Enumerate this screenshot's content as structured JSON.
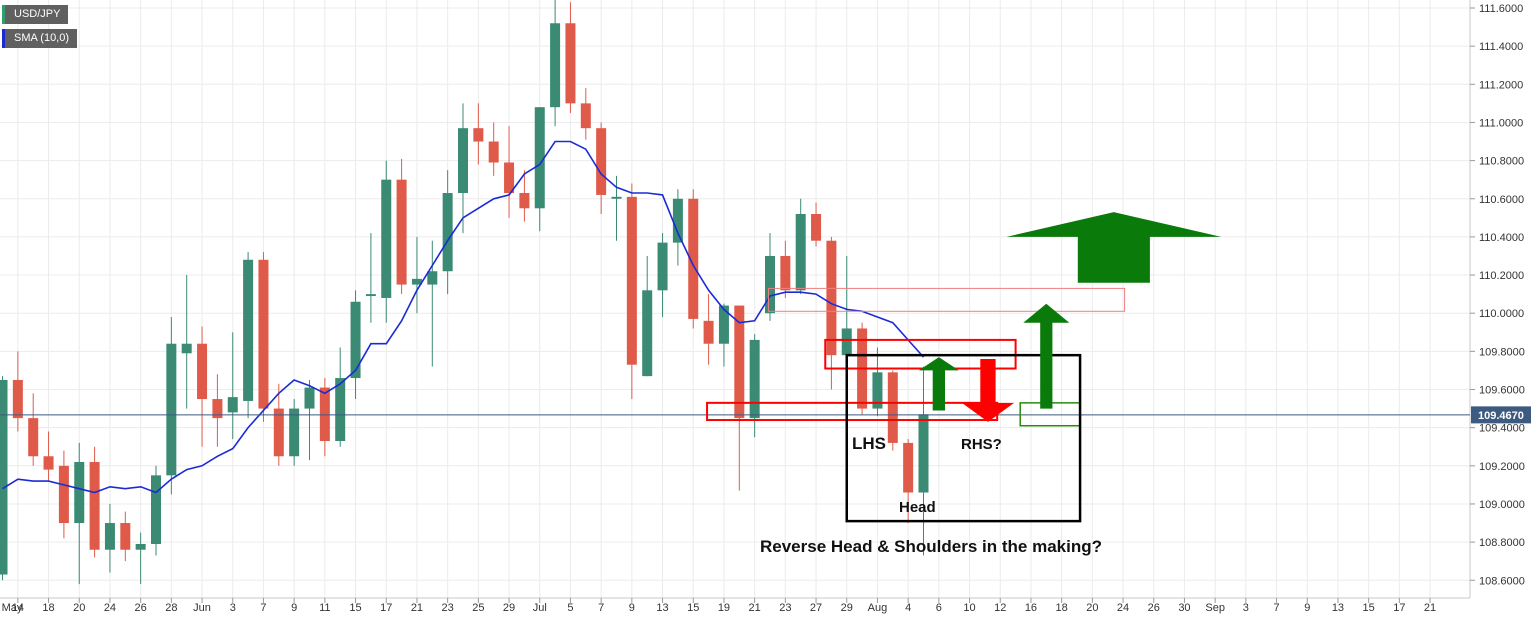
{
  "legend": {
    "instrument": "USD/JPY",
    "indicator": "SMA (10,0)"
  },
  "colors": {
    "up": "#3a8a74",
    "down": "#e05a4a",
    "sma": "#1a2bd6",
    "current_price_line": "#3d5a80",
    "price_tag_bg": "#3d5a80",
    "zone_red": "#ff0000",
    "zone_green": "#2a8a10",
    "arrow_green": "#0a7a0a",
    "arrow_red": "#ff0000"
  },
  "annotations": {
    "lhs": "LHS",
    "rhs": "RHS?",
    "head": "Head",
    "caption": "Reverse Head & Shoulders in the making?"
  },
  "current_price": {
    "label": "109.4670",
    "value": 109.467
  },
  "chart_data": {
    "type": "candlestick",
    "ylim": [
      108.52,
      111.62
    ],
    "y_ticks": [
      {
        "value": 108.6,
        "label": "108.6000"
      },
      {
        "value": 108.8,
        "label": "108.8000"
      },
      {
        "value": 109.0,
        "label": "109.0000"
      },
      {
        "value": 109.2,
        "label": "109.2000"
      },
      {
        "value": 109.4,
        "label": "109.4000"
      },
      {
        "value": 109.6,
        "label": "109.6000"
      },
      {
        "value": 109.8,
        "label": "109.8000"
      },
      {
        "value": 110.0,
        "label": "110.0000"
      },
      {
        "value": 110.2,
        "label": "110.2000"
      },
      {
        "value": 110.4,
        "label": "110.4000"
      },
      {
        "value": 110.6,
        "label": "110.6000"
      },
      {
        "value": 110.8,
        "label": "110.8000"
      },
      {
        "value": 111.0,
        "label": "111.0000"
      },
      {
        "value": 111.2,
        "label": "111.2000"
      },
      {
        "value": 111.4,
        "label": "111.4000"
      },
      {
        "value": 111.6,
        "label": "111.6000"
      }
    ],
    "x_ticks": [
      {
        "i": -0.5,
        "label": "May"
      },
      {
        "i": 1,
        "label": "14"
      },
      {
        "i": 3,
        "label": "18"
      },
      {
        "i": 5,
        "label": "20"
      },
      {
        "i": 7,
        "label": "24"
      },
      {
        "i": 9,
        "label": "26"
      },
      {
        "i": 11,
        "label": "28"
      },
      {
        "i": 13,
        "label": "Jun"
      },
      {
        "i": 15,
        "label": "3"
      },
      {
        "i": 17,
        "label": "7"
      },
      {
        "i": 19,
        "label": "9"
      },
      {
        "i": 21,
        "label": "11"
      },
      {
        "i": 23,
        "label": "15"
      },
      {
        "i": 25,
        "label": "17"
      },
      {
        "i": 27,
        "label": "21"
      },
      {
        "i": 29,
        "label": "23"
      },
      {
        "i": 31,
        "label": "25"
      },
      {
        "i": 33,
        "label": "29"
      },
      {
        "i": 35,
        "label": "Jul"
      },
      {
        "i": 37,
        "label": "5"
      },
      {
        "i": 39,
        "label": "7"
      },
      {
        "i": 41,
        "label": "9"
      },
      {
        "i": 43,
        "label": "13"
      },
      {
        "i": 45,
        "label": "15"
      },
      {
        "i": 47,
        "label": "19"
      },
      {
        "i": 49,
        "label": "21"
      },
      {
        "i": 51,
        "label": "23"
      },
      {
        "i": 53,
        "label": "27"
      },
      {
        "i": 55,
        "label": "29"
      },
      {
        "i": 57,
        "label": "Aug"
      },
      {
        "i": 59,
        "label": "4"
      },
      {
        "i": 61,
        "label": "6"
      },
      {
        "i": 63,
        "label": "10"
      },
      {
        "i": 65,
        "label": "12"
      },
      {
        "i": 67,
        "label": "16"
      },
      {
        "i": 69,
        "label": "18"
      },
      {
        "i": 71,
        "label": "20"
      },
      {
        "i": 73,
        "label": "24"
      },
      {
        "i": 75,
        "label": "26"
      },
      {
        "i": 77,
        "label": "30"
      },
      {
        "i": 79,
        "label": "Sep"
      },
      {
        "i": 81,
        "label": "3"
      },
      {
        "i": 83,
        "label": "7"
      },
      {
        "i": 85,
        "label": "9"
      },
      {
        "i": 87,
        "label": "13"
      },
      {
        "i": 89,
        "label": "15"
      },
      {
        "i": 91,
        "label": "17"
      },
      {
        "i": 93,
        "label": "21"
      }
    ],
    "candles": [
      {
        "i": 0,
        "o": 108.63,
        "h": 109.67,
        "l": 108.6,
        "c": 109.65
      },
      {
        "i": 1,
        "o": 109.65,
        "h": 109.8,
        "l": 109.38,
        "c": 109.45
      },
      {
        "i": 2,
        "o": 109.45,
        "h": 109.58,
        "l": 109.2,
        "c": 109.25
      },
      {
        "i": 3,
        "o": 109.25,
        "h": 109.38,
        "l": 109.12,
        "c": 109.18
      },
      {
        "i": 4,
        "o": 109.2,
        "h": 109.28,
        "l": 108.82,
        "c": 108.9
      },
      {
        "i": 5,
        "o": 108.9,
        "h": 109.32,
        "l": 108.58,
        "c": 109.22
      },
      {
        "i": 6,
        "o": 109.22,
        "h": 109.3,
        "l": 108.72,
        "c": 108.76
      },
      {
        "i": 7,
        "o": 108.76,
        "h": 109.0,
        "l": 108.64,
        "c": 108.9
      },
      {
        "i": 8,
        "o": 108.9,
        "h": 108.96,
        "l": 108.7,
        "c": 108.76
      },
      {
        "i": 9,
        "o": 108.76,
        "h": 108.85,
        "l": 108.58,
        "c": 108.79
      },
      {
        "i": 10,
        "o": 108.79,
        "h": 109.2,
        "l": 108.73,
        "c": 109.15
      },
      {
        "i": 11,
        "o": 109.15,
        "h": 109.98,
        "l": 109.05,
        "c": 109.84
      },
      {
        "i": 12,
        "o": 109.79,
        "h": 110.2,
        "l": 109.5,
        "c": 109.84
      },
      {
        "i": 13,
        "o": 109.84,
        "h": 109.93,
        "l": 109.3,
        "c": 109.55
      },
      {
        "i": 14,
        "o": 109.55,
        "h": 109.68,
        "l": 109.3,
        "c": 109.45
      },
      {
        "i": 15,
        "o": 109.48,
        "h": 109.9,
        "l": 109.34,
        "c": 109.56
      },
      {
        "i": 16,
        "o": 109.54,
        "h": 110.32,
        "l": 109.45,
        "c": 110.28
      },
      {
        "i": 17,
        "o": 110.28,
        "h": 110.32,
        "l": 109.43,
        "c": 109.5
      },
      {
        "i": 18,
        "o": 109.5,
        "h": 109.63,
        "l": 109.2,
        "c": 109.25
      },
      {
        "i": 19,
        "o": 109.25,
        "h": 109.55,
        "l": 109.2,
        "c": 109.5
      },
      {
        "i": 20,
        "o": 109.5,
        "h": 109.65,
        "l": 109.23,
        "c": 109.61
      },
      {
        "i": 21,
        "o": 109.61,
        "h": 109.66,
        "l": 109.25,
        "c": 109.33
      },
      {
        "i": 22,
        "o": 109.33,
        "h": 109.82,
        "l": 109.3,
        "c": 109.66
      },
      {
        "i": 23,
        "o": 109.66,
        "h": 110.12,
        "l": 109.55,
        "c": 110.06
      },
      {
        "i": 24,
        "o": 110.09,
        "h": 110.42,
        "l": 109.95,
        "c": 110.1
      },
      {
        "i": 25,
        "o": 110.08,
        "h": 110.8,
        "l": 109.95,
        "c": 110.7
      },
      {
        "i": 26,
        "o": 110.7,
        "h": 110.81,
        "l": 110.1,
        "c": 110.15
      },
      {
        "i": 27,
        "o": 110.15,
        "h": 110.4,
        "l": 110.0,
        "c": 110.18
      },
      {
        "i": 28,
        "o": 110.15,
        "h": 110.38,
        "l": 109.72,
        "c": 110.22
      },
      {
        "i": 29,
        "o": 110.22,
        "h": 110.75,
        "l": 110.1,
        "c": 110.63
      },
      {
        "i": 30,
        "o": 110.63,
        "h": 111.1,
        "l": 110.42,
        "c": 110.97
      },
      {
        "i": 31,
        "o": 110.97,
        "h": 111.1,
        "l": 110.78,
        "c": 110.9
      },
      {
        "i": 32,
        "o": 110.9,
        "h": 111.0,
        "l": 110.72,
        "c": 110.79
      },
      {
        "i": 33,
        "o": 110.79,
        "h": 110.98,
        "l": 110.5,
        "c": 110.63
      },
      {
        "i": 34,
        "o": 110.63,
        "h": 110.75,
        "l": 110.48,
        "c": 110.55
      },
      {
        "i": 35,
        "o": 110.55,
        "h": 111.08,
        "l": 110.43,
        "c": 111.08
      },
      {
        "i": 36,
        "o": 111.08,
        "h": 111.65,
        "l": 110.98,
        "c": 111.52
      },
      {
        "i": 37,
        "o": 111.52,
        "h": 111.63,
        "l": 111.05,
        "c": 111.1
      },
      {
        "i": 38,
        "o": 111.1,
        "h": 111.18,
        "l": 110.91,
        "c": 110.97
      },
      {
        "i": 39,
        "o": 110.97,
        "h": 111.0,
        "l": 110.52,
        "c": 110.62
      },
      {
        "i": 40,
        "o": 110.6,
        "h": 110.72,
        "l": 110.38,
        "c": 110.61
      },
      {
        "i": 41,
        "o": 110.61,
        "h": 110.68,
        "l": 109.55,
        "c": 109.73
      },
      {
        "i": 42,
        "o": 109.67,
        "h": 110.3,
        "l": 109.67,
        "c": 110.12
      },
      {
        "i": 43,
        "o": 110.12,
        "h": 110.42,
        "l": 109.98,
        "c": 110.37
      },
      {
        "i": 44,
        "o": 110.37,
        "h": 110.65,
        "l": 110.25,
        "c": 110.6
      },
      {
        "i": 45,
        "o": 110.6,
        "h": 110.65,
        "l": 109.92,
        "c": 109.97
      },
      {
        "i": 46,
        "o": 109.96,
        "h": 110.1,
        "l": 109.73,
        "c": 109.84
      },
      {
        "i": 47,
        "o": 109.84,
        "h": 110.05,
        "l": 109.72,
        "c": 110.04
      },
      {
        "i": 48,
        "o": 110.04,
        "h": 110.04,
        "l": 109.07,
        "c": 109.45
      },
      {
        "i": 49,
        "o": 109.45,
        "h": 109.89,
        "l": 109.35,
        "c": 109.86
      },
      {
        "i": 50,
        "o": 110.0,
        "h": 110.42,
        "l": 109.96,
        "c": 110.3
      },
      {
        "i": 51,
        "o": 110.3,
        "h": 110.38,
        "l": 110.08,
        "c": 110.12
      },
      {
        "i": 52,
        "o": 110.12,
        "h": 110.6,
        "l": 110.1,
        "c": 110.52
      },
      {
        "i": 53,
        "o": 110.52,
        "h": 110.58,
        "l": 110.35,
        "c": 110.38
      },
      {
        "i": 54,
        "o": 110.38,
        "h": 110.4,
        "l": 109.6,
        "c": 109.78
      },
      {
        "i": 55,
        "o": 109.78,
        "h": 110.3,
        "l": 109.72,
        "c": 109.92
      },
      {
        "i": 56,
        "o": 109.92,
        "h": 109.95,
        "l": 109.47,
        "c": 109.5
      },
      {
        "i": 57,
        "o": 109.5,
        "h": 109.82,
        "l": 109.46,
        "c": 109.69
      },
      {
        "i": 58,
        "o": 109.69,
        "h": 109.7,
        "l": 109.28,
        "c": 109.32
      },
      {
        "i": 59,
        "o": 109.32,
        "h": 109.34,
        "l": 108.9,
        "c": 109.06
      },
      {
        "i": 60,
        "o": 109.06,
        "h": 109.72,
        "l": 108.73,
        "c": 109.47
      }
    ],
    "sma": [
      {
        "i": 0,
        "v": 109.08
      },
      {
        "i": 1,
        "v": 109.13
      },
      {
        "i": 2,
        "v": 109.12
      },
      {
        "i": 3,
        "v": 109.12
      },
      {
        "i": 4,
        "v": 109.1
      },
      {
        "i": 5,
        "v": 109.08
      },
      {
        "i": 6,
        "v": 109.06
      },
      {
        "i": 7,
        "v": 109.09
      },
      {
        "i": 8,
        "v": 109.08
      },
      {
        "i": 9,
        "v": 109.09
      },
      {
        "i": 10,
        "v": 109.06
      },
      {
        "i": 11,
        "v": 109.13
      },
      {
        "i": 12,
        "v": 109.18
      },
      {
        "i": 13,
        "v": 109.2
      },
      {
        "i": 14,
        "v": 109.25
      },
      {
        "i": 15,
        "v": 109.29
      },
      {
        "i": 16,
        "v": 109.4
      },
      {
        "i": 17,
        "v": 109.49
      },
      {
        "i": 18,
        "v": 109.58
      },
      {
        "i": 19,
        "v": 109.65
      },
      {
        "i": 20,
        "v": 109.62
      },
      {
        "i": 21,
        "v": 109.58
      },
      {
        "i": 22,
        "v": 109.63
      },
      {
        "i": 23,
        "v": 109.7
      },
      {
        "i": 24,
        "v": 109.84
      },
      {
        "i": 25,
        "v": 109.84
      },
      {
        "i": 26,
        "v": 109.96
      },
      {
        "i": 27,
        "v": 110.12
      },
      {
        "i": 28,
        "v": 110.25
      },
      {
        "i": 29,
        "v": 110.38
      },
      {
        "i": 30,
        "v": 110.5
      },
      {
        "i": 31,
        "v": 110.55
      },
      {
        "i": 32,
        "v": 110.6
      },
      {
        "i": 33,
        "v": 110.62
      },
      {
        "i": 34,
        "v": 110.73
      },
      {
        "i": 35,
        "v": 110.78
      },
      {
        "i": 36,
        "v": 110.9
      },
      {
        "i": 37,
        "v": 110.9
      },
      {
        "i": 38,
        "v": 110.86
      },
      {
        "i": 39,
        "v": 110.73
      },
      {
        "i": 40,
        "v": 110.66
      },
      {
        "i": 41,
        "v": 110.63
      },
      {
        "i": 42,
        "v": 110.63
      },
      {
        "i": 43,
        "v": 110.62
      },
      {
        "i": 44,
        "v": 110.42
      },
      {
        "i": 45,
        "v": 110.25
      },
      {
        "i": 46,
        "v": 110.12
      },
      {
        "i": 47,
        "v": 110.02
      },
      {
        "i": 48,
        "v": 109.95
      },
      {
        "i": 49,
        "v": 109.96
      },
      {
        "i": 50,
        "v": 110.09
      },
      {
        "i": 51,
        "v": 110.11
      },
      {
        "i": 52,
        "v": 110.11
      },
      {
        "i": 53,
        "v": 110.1
      },
      {
        "i": 54,
        "v": 110.05
      },
      {
        "i": 55,
        "v": 110.02
      },
      {
        "i": 56,
        "v": 110.01
      },
      {
        "i": 57,
        "v": 109.98
      },
      {
        "i": 58,
        "v": 109.95
      },
      {
        "i": 59,
        "v": 109.86
      },
      {
        "i": 60,
        "v": 109.77
      }
    ],
    "zones": [
      {
        "name": "upper-resistance-zone",
        "i0": 49.9,
        "i1": 73.1,
        "top": 110.13,
        "bottom": 110.01,
        "color": "#f08080",
        "width": 1
      },
      {
        "name": "middle-resistance-zone",
        "i0": 53.6,
        "i1": 66.0,
        "top": 109.86,
        "bottom": 109.71,
        "color": "#ff0000",
        "width": 2
      },
      {
        "name": "neckline-support-zone",
        "i0": 45.9,
        "i1": 64.8,
        "top": 109.53,
        "bottom": 109.44,
        "color": "#ff0000",
        "width": 2
      },
      {
        "name": "target-zone",
        "i0": 66.3,
        "i1": 70.2,
        "top": 109.53,
        "bottom": 109.41,
        "color": "#2a8a10",
        "width": 1.5
      }
    ],
    "pattern_box": {
      "i0": 55.0,
      "i1": 70.2,
      "top": 109.78,
      "bottom": 108.91
    },
    "arrows": [
      {
        "name": "green-up-arrow-small",
        "dir": "up",
        "i": 61.0,
        "tip": 109.77,
        "base": 109.49,
        "color": "#0a7a0a",
        "shaft": 0.8,
        "head": 2.6,
        "head_len": 0.07
      },
      {
        "name": "red-down-arrow",
        "dir": "down",
        "i": 64.2,
        "tip": 109.43,
        "base": 109.76,
        "color": "#ff0000",
        "shaft": 1.0,
        "head": 3.4,
        "head_len": 0.1
      },
      {
        "name": "green-up-arrow-medium",
        "dir": "up",
        "i": 68.0,
        "tip": 110.05,
        "base": 109.5,
        "color": "#0a7a0a",
        "shaft": 0.8,
        "head": 3.0,
        "head_len": 0.1
      },
      {
        "name": "big-green-up-arrow",
        "dir": "up",
        "i": 72.4,
        "tip": 110.53,
        "base": 110.16,
        "color": "#0a7a0a",
        "shaft": 4.7,
        "head": 14.0,
        "head_len": 0.13
      }
    ]
  }
}
